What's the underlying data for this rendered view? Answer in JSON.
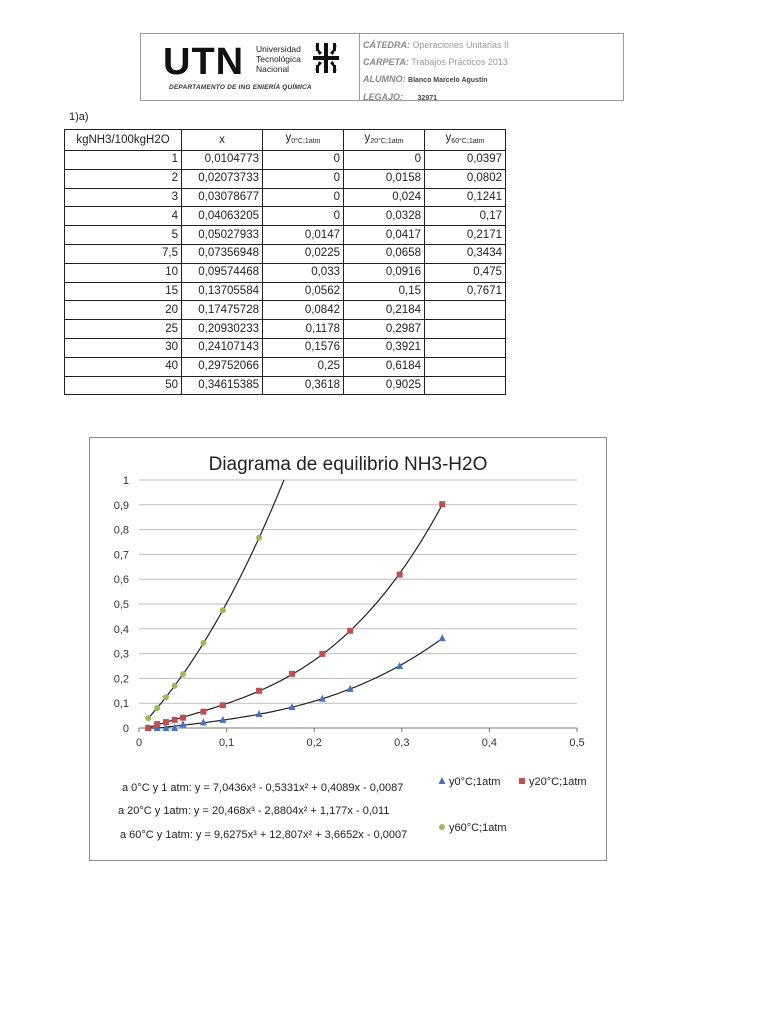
{
  "header": {
    "logo": "UTN",
    "university_lines": [
      "Universidad",
      "Tecnológica",
      "Nacional"
    ],
    "department": "DEPARTAMENTO DE ING ENIERÍA QUÍMICA",
    "catedra_label": "CÁTEDRA:",
    "catedra_value": "Operaciones Unitarias II",
    "carpeta_label": "CARPETA:",
    "carpeta_value": "Trabajos Prácticos 2013",
    "alumno_label": "ALUMNO:",
    "alumno_value": "Blanco Marcelo Agustín",
    "legajo_label": "LEGAJO:",
    "legajo_value": "32971"
  },
  "section_label": "1)a)",
  "table": {
    "headers": [
      "kgNH3/100kgH2O",
      "x",
      "y",
      "y",
      "y"
    ],
    "header_subs": [
      "",
      "",
      "0°C;1atm",
      "20°C;1atm",
      "60°C;1atm"
    ],
    "rows": [
      [
        "1",
        "0,0104773",
        "0",
        "0",
        "0,0397"
      ],
      [
        "2",
        "0,02073733",
        "0",
        "0,0158",
        "0,0802"
      ],
      [
        "3",
        "0,03078677",
        "0",
        "0,024",
        "0,1241"
      ],
      [
        "4",
        "0,04063205",
        "0",
        "0,0328",
        "0,17"
      ],
      [
        "5",
        "0,05027933",
        "0,0147",
        "0,0417",
        "0,2171"
      ],
      [
        "7,5",
        "0,07356948",
        "0,0225",
        "0,0658",
        "0,3434"
      ],
      [
        "10",
        "0,09574468",
        "0,033",
        "0,0916",
        "0,475"
      ],
      [
        "15",
        "0,13705584",
        "0,0562",
        "0,15",
        "0,7671"
      ],
      [
        "20",
        "0,17475728",
        "0,0842",
        "0,2184",
        ""
      ],
      [
        "25",
        "0,20930233",
        "0,1178",
        "0,2987",
        ""
      ],
      [
        "30",
        "0,24107143",
        "0,1576",
        "0,3921",
        ""
      ],
      [
        "40",
        "0,29752066",
        "0,25",
        "0,6184",
        ""
      ],
      [
        "50",
        "0,34615385",
        "0,3618",
        "0,9025",
        ""
      ]
    ]
  },
  "chart_data": {
    "type": "scatter",
    "title": "Diagrama de equilibrio NH3-H2O",
    "xlabel": "",
    "ylabel": "",
    "xlim": [
      0,
      0.5
    ],
    "ylim": [
      0,
      1
    ],
    "x_ticks": [
      "0",
      "0,1",
      "0,2",
      "0,3",
      "0,4",
      "0,5"
    ],
    "y_ticks": [
      "0",
      "0,1",
      "0,2",
      "0,3",
      "0,4",
      "0,5",
      "0,6",
      "0,7",
      "0,8",
      "0,9",
      "1"
    ],
    "grid": "horizontal",
    "legend_position": "bottom-right",
    "series": [
      {
        "name": "y0°C;1atm",
        "color": "#4472c4",
        "marker": "triangle",
        "x": [
          0.0104773,
          0.02073733,
          0.03078677,
          0.04063205,
          0.05027933,
          0.07356948,
          0.09574468,
          0.13705584,
          0.17475728,
          0.20930233,
          0.24107143,
          0.29752066,
          0.34615385
        ],
        "y": [
          0,
          0,
          0,
          0,
          0.0147,
          0.0225,
          0.033,
          0.0562,
          0.0842,
          0.1178,
          0.1576,
          0.25,
          0.3618
        ],
        "trend": [
          7.0436,
          -0.5331,
          0.4089,
          -0.0087
        ]
      },
      {
        "name": "y20°C;1atm",
        "color": "#c0504d",
        "marker": "square",
        "x": [
          0.0104773,
          0.02073733,
          0.03078677,
          0.04063205,
          0.05027933,
          0.07356948,
          0.09574468,
          0.13705584,
          0.17475728,
          0.20930233,
          0.24107143,
          0.29752066,
          0.34615385
        ],
        "y": [
          0,
          0.0158,
          0.024,
          0.0328,
          0.0417,
          0.0658,
          0.0916,
          0.15,
          0.2184,
          0.2987,
          0.3921,
          0.6184,
          0.9025
        ],
        "trend": [
          20.468,
          -2.8804,
          1.177,
          -0.011
        ]
      },
      {
        "name": "y60°C;1atm",
        "color": "#9bbb59",
        "marker": "circle",
        "x": [
          0.0104773,
          0.02073733,
          0.03078677,
          0.04063205,
          0.05027933,
          0.07356948,
          0.09574468,
          0.13705584
        ],
        "y": [
          0.0397,
          0.0802,
          0.1241,
          0.17,
          0.2171,
          0.3434,
          0.475,
          0.7671
        ],
        "trend": [
          9.6275,
          12.807,
          3.6652,
          -0.0007
        ]
      }
    ],
    "annotations": [
      "a 0°C y 1 atm: y = 7,0436x³ - 0,5331x² + 0,4089x - 0,0087",
      "a 20°C y 1atm: y = 20,468x³ - 2,8804x² + 1,177x - 0,011",
      "a 60°C y 1atm: y = 9,6275x³ + 12,807x² + 3,6652x - 0,0007"
    ]
  }
}
